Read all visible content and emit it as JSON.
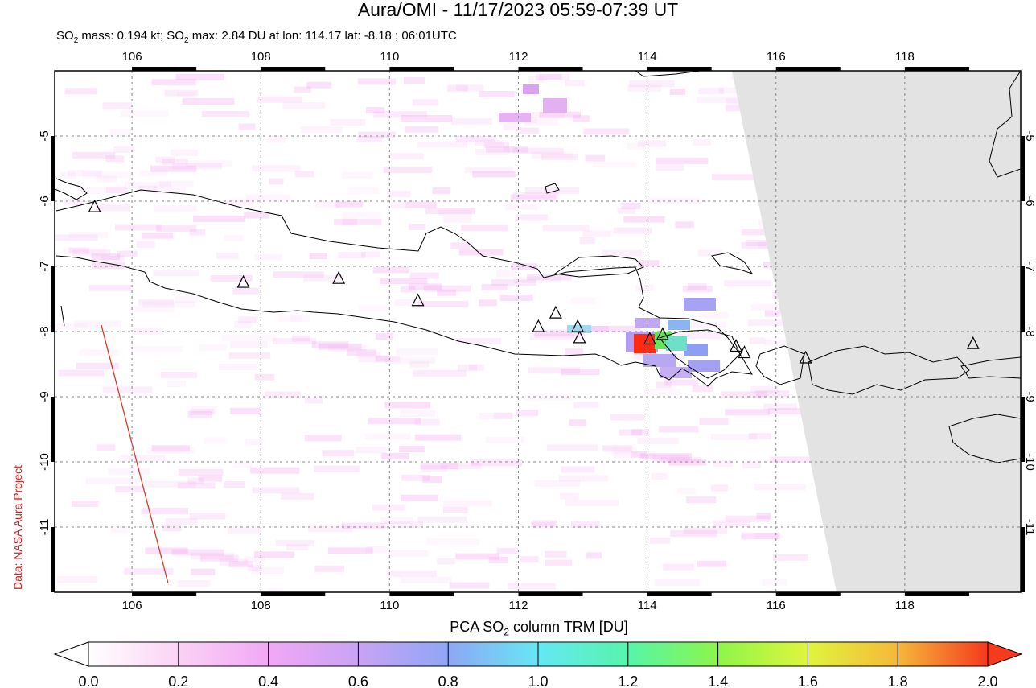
{
  "header": {
    "title": "Aura/OMI - 11/17/2023 05:59-07:39 UT",
    "subtitle_parts": {
      "p1": "SO",
      "sub1": "2",
      "p2": " mass: 0.194 kt; SO",
      "sub2": "2",
      "p3": " max: 2.84 DU at lon: 114.17 lat: -8.18 ; 06:01UTC"
    }
  },
  "credit": "Data: NASA Aura Project",
  "map": {
    "lon_range": [
      104.8,
      119.8
    ],
    "lat_range": [
      -12.0,
      -4.0
    ],
    "lon_ticks": [
      "106",
      "108",
      "110",
      "112",
      "114",
      "116",
      "118"
    ],
    "lon_tick_values": [
      106,
      108,
      110,
      112,
      114,
      116,
      118
    ],
    "lat_ticks": [
      "-5",
      "-6",
      "-7",
      "-8",
      "-9",
      "-10",
      "-11"
    ],
    "lat_tick_values": [
      -5,
      -6,
      -7,
      -8,
      -9,
      -10,
      -11
    ],
    "gridlines": true,
    "no_data_color": "#e3e3e3",
    "coast_color": "#000000",
    "so2_max_location": {
      "lon": 114.17,
      "lat": -8.18,
      "value_du": 2.84
    },
    "volcanoes": [
      {
        "lon": 105.42,
        "lat": -6.1
      },
      {
        "lon": 107.73,
        "lat": -7.26
      },
      {
        "lon": 109.21,
        "lat": -7.2
      },
      {
        "lon": 110.44,
        "lat": -7.54
      },
      {
        "lon": 112.31,
        "lat": -7.94
      },
      {
        "lon": 112.58,
        "lat": -7.73
      },
      {
        "lon": 112.92,
        "lat": -7.94
      },
      {
        "lon": 112.95,
        "lat": -8.11
      },
      {
        "lon": 114.04,
        "lat": -8.13
      },
      {
        "lon": 114.24,
        "lat": -8.06
      },
      {
        "lon": 115.38,
        "lat": -8.24
      },
      {
        "lon": 115.51,
        "lat": -8.34
      },
      {
        "lon": 116.46,
        "lat": -8.42
      },
      {
        "lon": 119.06,
        "lat": -8.2
      }
    ]
  },
  "colorbar": {
    "title_parts": {
      "p1": "PCA SO",
      "sub": "2",
      "p2": " column TRM [DU]"
    },
    "tick_labels": [
      "0.0",
      "0.2",
      "0.4",
      "0.6",
      "0.8",
      "1.0",
      "1.2",
      "1.4",
      "1.6",
      "1.8",
      "2.0"
    ],
    "min": 0.0,
    "max": 2.0,
    "colors": [
      "#ffffff",
      "#fbd2f5",
      "#f1a8f5",
      "#c9a3f5",
      "#8fa6f5",
      "#66e7f5",
      "#55f5aa",
      "#8df54a",
      "#e0f53c",
      "#f5b83a",
      "#f53a1e"
    ]
  }
}
